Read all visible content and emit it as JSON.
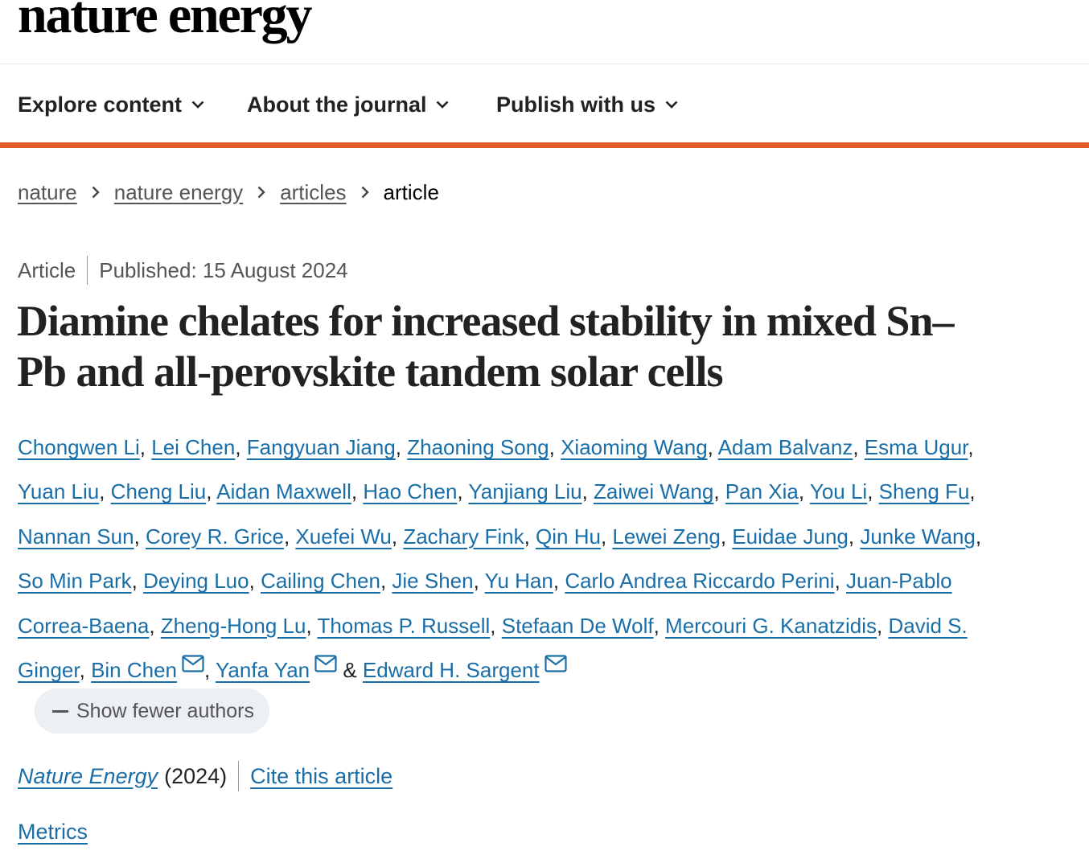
{
  "brand": {
    "logo_text": "nature energy"
  },
  "nav": {
    "items": [
      {
        "label": "Explore content",
        "icon": "chevron-down-icon"
      },
      {
        "label": "About the journal",
        "icon": "chevron-down-icon"
      },
      {
        "label": "Publish with us",
        "icon": "chevron-down-icon"
      }
    ]
  },
  "breadcrumb": {
    "items": [
      "nature",
      "nature energy",
      "articles"
    ],
    "current": "article",
    "separator_icon": "chevron-right-icon"
  },
  "article": {
    "type": "Article",
    "published": "Published: 15 August 2024",
    "title": "Diamine chelates for increased stability in mixed Sn–Pb and all-perovskite tandem solar cells",
    "authors": [
      "Chongwen Li",
      "Lei Chen",
      "Fangyuan Jiang",
      "Zhaoning Song",
      "Xiaoming Wang",
      "Adam Balvanz",
      "Esma Ugur",
      "Yuan Liu",
      "Cheng Liu",
      "Aidan Maxwell",
      "Hao Chen",
      "Yanjiang Liu",
      "Zaiwei Wang",
      "Pan Xia",
      "You Li",
      "Sheng Fu",
      "Nannan Sun",
      "Corey R. Grice",
      "Xuefei Wu",
      "Zachary Fink",
      "Qin Hu",
      "Lewei Zeng",
      "Euidae Jung",
      "Junke Wang",
      "So Min Park",
      "Deying Luo",
      "Cailing Chen",
      "Jie Shen",
      "Yu Han",
      "Carlo Andrea Riccardo Perini",
      "Juan-Pablo Correa-Baena",
      "Zheng-Hong Lu",
      "Thomas P. Russell",
      "Stefaan De Wolf",
      "Mercouri G. Kanatzidis",
      "David S. Ginger",
      "Bin Chen",
      "Yanfa Yan",
      "Edward H. Sargent"
    ],
    "corresponding_authors": [
      "Bin Chen",
      "Yanfa Yan",
      "Edward H. Sargent"
    ],
    "mail_icon": "envelope-icon",
    "author_separator": ", ",
    "last_author_separator": " & ",
    "show_fewer_label": "Show fewer authors",
    "journal": "Nature Energy",
    "year": "(2024)",
    "cite_label": "Cite this article",
    "metrics_label": "Metrics"
  },
  "colors": {
    "accent_orange": "#e05b25",
    "link_blue": "#1a6ea8",
    "text_dark": "#222222",
    "text_muted": "#555555",
    "button_bg": "#eceff3"
  }
}
